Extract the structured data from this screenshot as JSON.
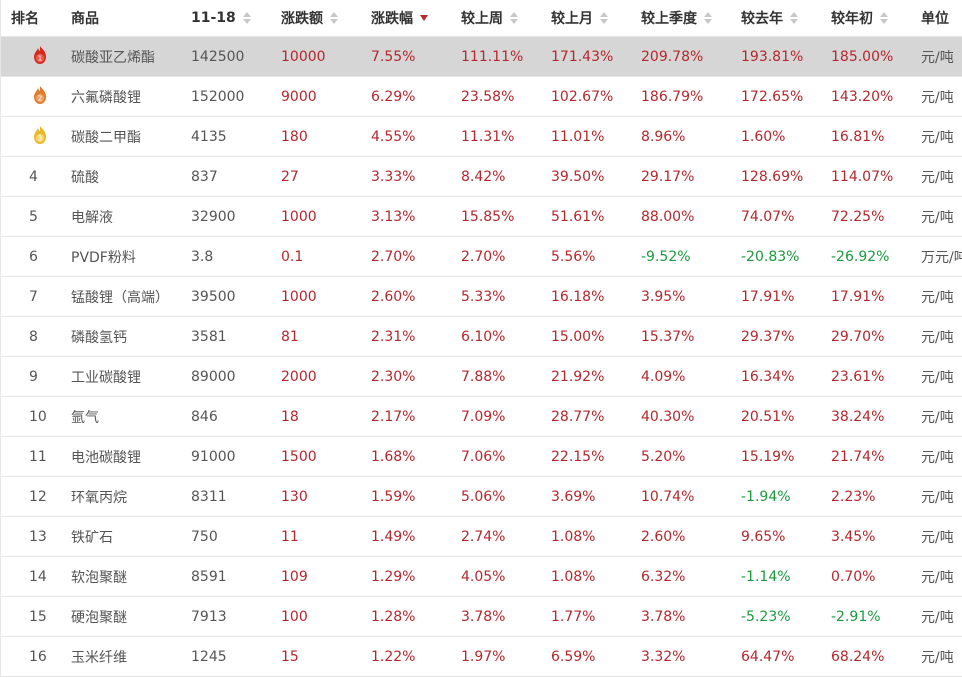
{
  "header": {
    "rank": "排名",
    "name": "商品",
    "price": "11-18",
    "change": "涨跌额",
    "pct": "涨跌幅",
    "week": "较上周",
    "month": "较上月",
    "quarter": "较上季度",
    "year": "较去年",
    "ytd": "较年初",
    "unit": "单位"
  },
  "colors": {
    "up": "#b3282d",
    "down": "#1c9a3e",
    "highlight_row": "#d6d6d6",
    "medal_gold": "#e8b72c",
    "medal_silver": "#e07a2e",
    "medal_bronze": "#d42a1f"
  },
  "rows": [
    {
      "rank": "1",
      "medal": "medal-1-icon",
      "name": "碳酸亚乙烯酯",
      "price": "142500",
      "change": "10000",
      "pct": "7.55%",
      "week": "111.11%",
      "month": "171.43%",
      "quarter": "209.78%",
      "year": "193.81%",
      "ytd": "185.00%",
      "unit": "元/吨"
    },
    {
      "rank": "2",
      "medal": "medal-2-icon",
      "name": "六氟磷酸锂",
      "price": "152000",
      "change": "9000",
      "pct": "6.29%",
      "week": "23.58%",
      "month": "102.67%",
      "quarter": "186.79%",
      "year": "172.65%",
      "ytd": "143.20%",
      "unit": "元/吨"
    },
    {
      "rank": "3",
      "medal": "medal-3-icon",
      "name": "碳酸二甲酯",
      "price": "4135",
      "change": "180",
      "pct": "4.55%",
      "week": "11.31%",
      "month": "11.01%",
      "quarter": "8.96%",
      "year": "1.60%",
      "ytd": "16.81%",
      "unit": "元/吨"
    },
    {
      "rank": "4",
      "name": "硫酸",
      "price": "837",
      "change": "27",
      "pct": "3.33%",
      "week": "8.42%",
      "month": "39.50%",
      "quarter": "29.17%",
      "year": "128.69%",
      "ytd": "114.07%",
      "unit": "元/吨"
    },
    {
      "rank": "5",
      "name": "电解液",
      "price": "32900",
      "change": "1000",
      "pct": "3.13%",
      "week": "15.85%",
      "month": "51.61%",
      "quarter": "88.00%",
      "year": "74.07%",
      "ytd": "72.25%",
      "unit": "元/吨"
    },
    {
      "rank": "6",
      "name": "PVDF粉料",
      "price": "3.8",
      "change": "0.1",
      "pct": "2.70%",
      "week": "2.70%",
      "month": "5.56%",
      "quarter": "-9.52%",
      "year": "-20.83%",
      "ytd": "-26.92%",
      "unit": "万元/吨"
    },
    {
      "rank": "7",
      "name": "锰酸锂（高端）",
      "price": "39500",
      "change": "1000",
      "pct": "2.60%",
      "week": "5.33%",
      "month": "16.18%",
      "quarter": "3.95%",
      "year": "17.91%",
      "ytd": "17.91%",
      "unit": "元/吨"
    },
    {
      "rank": "8",
      "name": "磷酸氢钙",
      "price": "3581",
      "change": "81",
      "pct": "2.31%",
      "week": "6.10%",
      "month": "15.00%",
      "quarter": "15.37%",
      "year": "29.37%",
      "ytd": "29.70%",
      "unit": "元/吨"
    },
    {
      "rank": "9",
      "name": "工业碳酸锂",
      "price": "89000",
      "change": "2000",
      "pct": "2.30%",
      "week": "7.88%",
      "month": "21.92%",
      "quarter": "4.09%",
      "year": "16.34%",
      "ytd": "23.61%",
      "unit": "元/吨"
    },
    {
      "rank": "10",
      "name": "氩气",
      "price": "846",
      "change": "18",
      "pct": "2.17%",
      "week": "7.09%",
      "month": "28.77%",
      "quarter": "40.30%",
      "year": "20.51%",
      "ytd": "38.24%",
      "unit": "元/吨"
    },
    {
      "rank": "11",
      "name": "电池碳酸锂",
      "price": "91000",
      "change": "1500",
      "pct": "1.68%",
      "week": "7.06%",
      "month": "22.15%",
      "quarter": "5.20%",
      "year": "15.19%",
      "ytd": "21.74%",
      "unit": "元/吨"
    },
    {
      "rank": "12",
      "name": "环氧丙烷",
      "price": "8311",
      "change": "130",
      "pct": "1.59%",
      "week": "5.06%",
      "month": "3.69%",
      "quarter": "10.74%",
      "year": "-1.94%",
      "ytd": "2.23%",
      "unit": "元/吨"
    },
    {
      "rank": "13",
      "name": "铁矿石",
      "price": "750",
      "change": "11",
      "pct": "1.49%",
      "week": "2.74%",
      "month": "1.08%",
      "quarter": "2.60%",
      "year": "9.65%",
      "ytd": "3.45%",
      "unit": "元/吨"
    },
    {
      "rank": "14",
      "name": "软泡聚醚",
      "price": "8591",
      "change": "109",
      "pct": "1.29%",
      "week": "4.05%",
      "month": "1.08%",
      "quarter": "6.32%",
      "year": "-1.14%",
      "ytd": "0.70%",
      "unit": "元/吨"
    },
    {
      "rank": "15",
      "name": "硬泡聚醚",
      "price": "7913",
      "change": "100",
      "pct": "1.28%",
      "week": "3.78%",
      "month": "1.77%",
      "quarter": "3.78%",
      "year": "-5.23%",
      "ytd": "-2.91%",
      "unit": "元/吨"
    },
    {
      "rank": "16",
      "name": "玉米纤维",
      "price": "1245",
      "change": "15",
      "pct": "1.22%",
      "week": "1.97%",
      "month": "6.59%",
      "quarter": "3.32%",
      "year": "64.47%",
      "ytd": "68.24%",
      "unit": "元/吨"
    }
  ]
}
